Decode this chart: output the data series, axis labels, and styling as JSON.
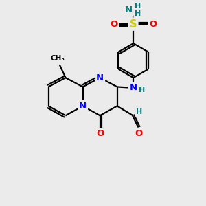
{
  "bg_color": "#ebebeb",
  "atom_colors": {
    "C": "#000000",
    "N": "#0000ff",
    "O": "#ff0000",
    "S": "#cccc00",
    "H": "#008080"
  },
  "bond_color": "#000000",
  "bond_width": 1.6,
  "figsize": [
    3.0,
    3.0
  ],
  "dpi": 100
}
